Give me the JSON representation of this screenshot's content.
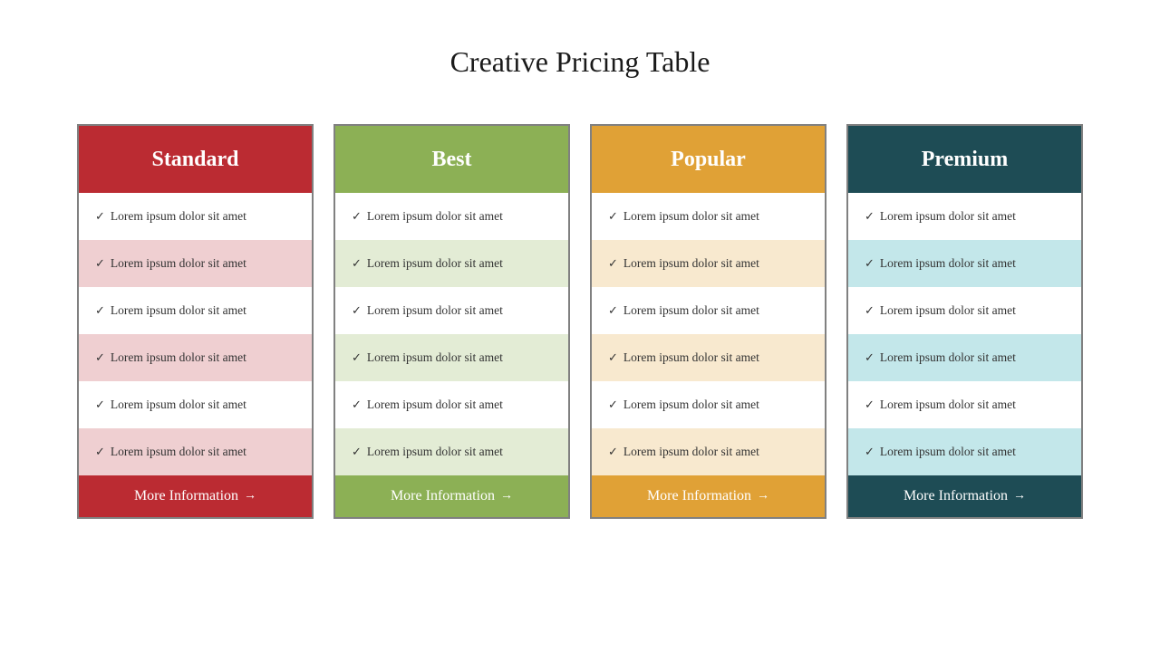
{
  "title": "Creative Pricing Table",
  "feature_text": "Lorem ipsum dolor sit amet",
  "footer_label": "More Information",
  "card_border_color": "#808080",
  "background_color": "#ffffff",
  "title_fontsize": 32,
  "header_fontsize": 24,
  "feature_fontsize": 13.5,
  "footer_fontsize": 16,
  "cards": [
    {
      "name": "Standard",
      "header_color": "#bb2b32",
      "footer_color": "#bb2b32",
      "stripe_colors": [
        "#ffffff",
        "#efcfd1",
        "#ffffff",
        "#efcfd1",
        "#ffffff",
        "#efcfd1"
      ]
    },
    {
      "name": "Best",
      "header_color": "#8cb055",
      "footer_color": "#8cb055",
      "stripe_colors": [
        "#ffffff",
        "#e3ecd5",
        "#ffffff",
        "#e3ecd5",
        "#ffffff",
        "#e3ecd5"
      ]
    },
    {
      "name": "Popular",
      "header_color": "#e0a136",
      "footer_color": "#e0a136",
      "stripe_colors": [
        "#ffffff",
        "#f8e9cf",
        "#ffffff",
        "#f8e9cf",
        "#ffffff",
        "#f8e9cf"
      ]
    },
    {
      "name": "Premium",
      "header_color": "#1e4c55",
      "footer_color": "#1e4c55",
      "stripe_colors": [
        "#ffffff",
        "#c3e7ea",
        "#ffffff",
        "#c3e7ea",
        "#ffffff",
        "#c3e7ea"
      ]
    }
  ]
}
